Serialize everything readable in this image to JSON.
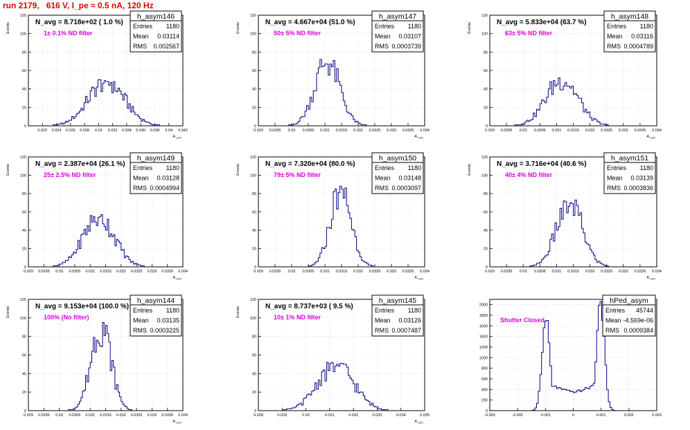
{
  "header": {
    "title": "run 2179,   616 V, I_pe ≈ 0.5 nA, 120 Hz"
  },
  "colors": {
    "title": "#e00000",
    "histogram": "#000080",
    "annotation": "#e000e0",
    "grid": "#c8c8c8",
    "frame": "#000000"
  },
  "chart_data": [
    {
      "type": "bar",
      "title": "h_asym146",
      "ylabel": "Events",
      "xlabel": "A_{LED}",
      "xlim": [
        0.02,
        0.042
      ],
      "ylim": [
        0,
        120
      ],
      "xticks": [
        0.022,
        0.024,
        0.026,
        0.028,
        0.03,
        0.032,
        0.034,
        0.036,
        0.038,
        0.04,
        0.042
      ],
      "yticks": [
        0,
        20,
        40,
        60,
        80,
        100,
        120
      ],
      "navg": "N_avg = 8.718e+02 ( 1.0 %)",
      "filter": "1± 0.1% ND filter",
      "stats": {
        "entries": "1180",
        "mean": "0.03114",
        "rms": "0.002567"
      },
      "mean": 0.03114,
      "rms": 0.002567,
      "peak": 50,
      "nbins": 100
    },
    {
      "type": "bar",
      "title": "h_asym147",
      "ylabel": "Events",
      "xlabel": "A_{LED}",
      "xlim": [
        0.029,
        0.034
      ],
      "ylim": [
        0,
        120
      ],
      "xticks": [
        0.029,
        0.0295,
        0.03,
        0.0305,
        0.031,
        0.0315,
        0.032,
        0.0325,
        0.033,
        0.0335,
        0.034
      ],
      "yticks": [
        0,
        20,
        40,
        60,
        80,
        100,
        120
      ],
      "navg": "N_avg = 4.667e+04 (51.0 %)",
      "filter": "50± 5% ND filter",
      "stats": {
        "entries": "1180",
        "mean": "0.03107",
        "rms": "0.0003739"
      },
      "mean": 0.03107,
      "rms": 0.0003739,
      "peak": 72,
      "nbins": 100
    },
    {
      "type": "bar",
      "title": "h_asym148",
      "ylabel": "Events",
      "xlabel": "A_{LED}",
      "xlim": [
        0.029,
        0.034
      ],
      "ylim": [
        0,
        120
      ],
      "xticks": [
        0.029,
        0.0295,
        0.03,
        0.0305,
        0.031,
        0.0315,
        0.032,
        0.0325,
        0.033,
        0.0335,
        0.034
      ],
      "yticks": [
        0,
        20,
        40,
        60,
        80,
        100,
        120
      ],
      "navg": "N_avg = 5.833e+04 (63.7 %)",
      "filter": "63± 5% ND filter",
      "stats": {
        "entries": "1180",
        "mean": "0.03116",
        "rms": "0.0004789"
      },
      "mean": 0.03116,
      "rms": 0.0004789,
      "peak": 52,
      "nbins": 100
    },
    {
      "type": "bar",
      "title": "h_asym149",
      "ylabel": "Events",
      "xlabel": "A_{LED}",
      "xlim": [
        0.029,
        0.034
      ],
      "ylim": [
        0,
        120
      ],
      "xticks": [
        0.029,
        0.0295,
        0.03,
        0.0305,
        0.031,
        0.0315,
        0.032,
        0.0325,
        0.033,
        0.0335,
        0.034
      ],
      "yticks": [
        0,
        20,
        40,
        60,
        80,
        100,
        120
      ],
      "navg": "N_avg = 2.387e+04 (26.1 %)",
      "filter": "25± 2.5% ND filter",
      "stats": {
        "entries": "1180",
        "mean": "0.03128",
        "rms": "0.0004994"
      },
      "mean": 0.03128,
      "rms": 0.0004994,
      "peak": 57,
      "nbins": 100
    },
    {
      "type": "bar",
      "title": "h_asym150",
      "ylabel": "Events",
      "xlabel": "A_{LED}",
      "xlim": [
        0.029,
        0.034
      ],
      "ylim": [
        0,
        120
      ],
      "xticks": [
        0.029,
        0.0295,
        0.03,
        0.0305,
        0.031,
        0.0315,
        0.032,
        0.0325,
        0.033,
        0.0335,
        0.034
      ],
      "yticks": [
        0,
        20,
        40,
        60,
        80,
        100,
        120
      ],
      "navg": "N_avg = 7.320e+04 (80.0 %)",
      "filter": "79± 5% ND filter",
      "stats": {
        "entries": "1180",
        "mean": "0.03148",
        "rms": "0.0003097"
      },
      "mean": 0.03148,
      "rms": 0.0003097,
      "peak": 88,
      "nbins": 100
    },
    {
      "type": "bar",
      "title": "h_asym151",
      "ylabel": "Events",
      "xlabel": "A_{LED}",
      "xlim": [
        0.029,
        0.034
      ],
      "ylim": [
        0,
        120
      ],
      "xticks": [
        0.029,
        0.0295,
        0.03,
        0.0305,
        0.031,
        0.0315,
        0.032,
        0.0325,
        0.033,
        0.0335,
        0.034
      ],
      "yticks": [
        0,
        20,
        40,
        60,
        80,
        100,
        120
      ],
      "navg": "N_avg = 3.716e+04 (40.6 %)",
      "filter": "40± 4% ND filter",
      "stats": {
        "entries": "1180",
        "mean": "0.03139",
        "rms": "0.0003836"
      },
      "mean": 0.03139,
      "rms": 0.0003836,
      "peak": 73,
      "nbins": 100
    },
    {
      "type": "bar",
      "title": "h_asym144",
      "ylabel": "Events",
      "xlabel": "A_{LED}",
      "xlim": [
        0.029,
        0.034
      ],
      "ylim": [
        0,
        120
      ],
      "xticks": [
        0.029,
        0.0295,
        0.03,
        0.0305,
        0.031,
        0.0315,
        0.032,
        0.0325,
        0.033,
        0.0335,
        0.034
      ],
      "yticks": [
        0,
        20,
        40,
        60,
        80,
        100,
        120
      ],
      "navg": "N_avg = 9.153e+04 (100.0 %)",
      "filter": "100% (No filter)",
      "stats": {
        "entries": "1180",
        "mean": "0.03135",
        "rms": "0.0003225"
      },
      "mean": 0.03135,
      "rms": 0.0003225,
      "peak": 95,
      "nbins": 100
    },
    {
      "type": "bar",
      "title": "h_asym145",
      "ylabel": "Events",
      "xlabel": "A_{LED}",
      "xlim": [
        0.028,
        0.035
      ],
      "ylim": [
        0,
        120
      ],
      "xticks": [
        0.028,
        0.029,
        0.03,
        0.031,
        0.032,
        0.033,
        0.034,
        0.035
      ],
      "yticks": [
        0,
        20,
        40,
        60,
        80,
        100,
        120
      ],
      "navg": "N_avg = 8.737e+03 ( 9.5 %)",
      "filter": "10± 1% ND filter",
      "stats": {
        "entries": "1180",
        "mean": "0.03126",
        "rms": "0.0007487"
      },
      "mean": 0.03126,
      "rms": 0.0007487,
      "peak": 52,
      "nbins": 100
    },
    {
      "type": "bar",
      "title": "hPed_asym",
      "ylabel": "",
      "xlabel": "",
      "xlim": [
        -0.003,
        0.003
      ],
      "ylim": [
        0,
        2100
      ],
      "xticks": [
        -0.003,
        -0.002,
        -0.001,
        0,
        0.001,
        0.002,
        0.003
      ],
      "yticks": [
        0,
        200,
        400,
        600,
        800,
        1000,
        1200,
        1400,
        1600,
        1800,
        2000
      ],
      "navg": "",
      "filter": "Shutter Closed",
      "stats": {
        "entries": "45744",
        "mean": "-4.569e-06",
        "rms": "0.0009384"
      },
      "bimodal": {
        "peaks": [
          -0.00098,
          0.00098
        ],
        "sigma": 0.00014,
        "heights": [
          1720,
          2040
        ],
        "plateau": 420
      },
      "nbins": 100
    }
  ]
}
